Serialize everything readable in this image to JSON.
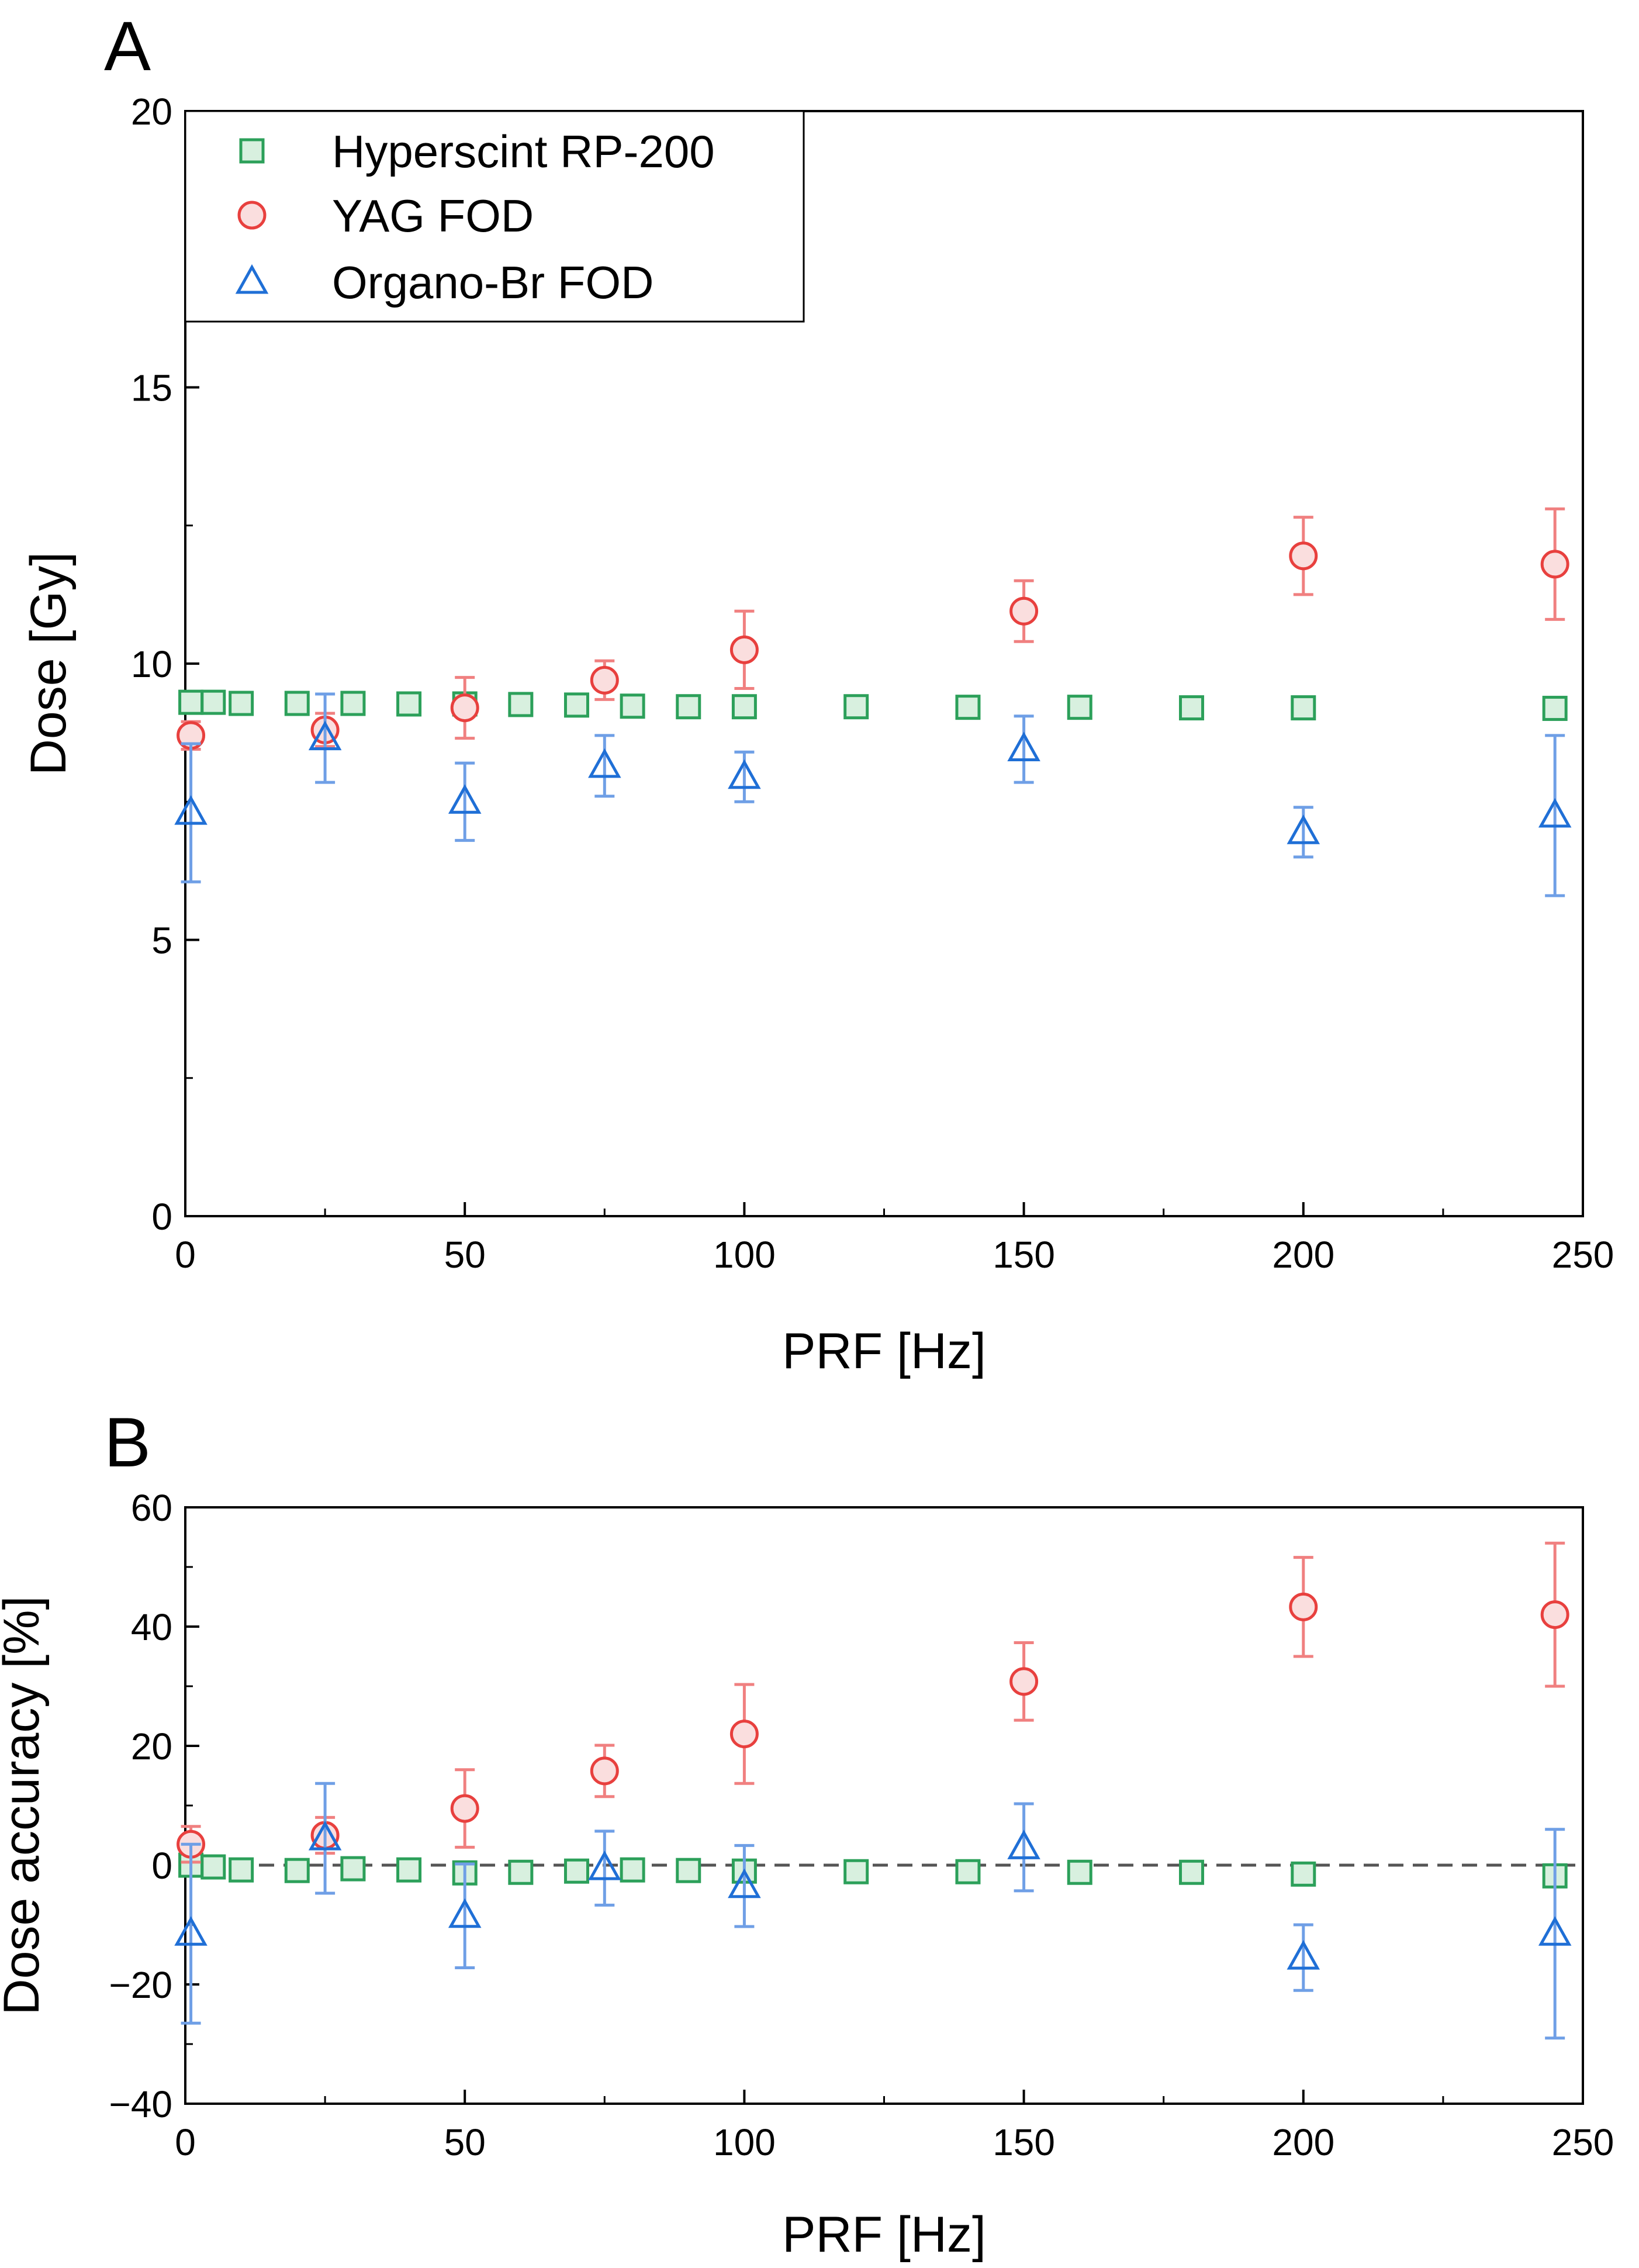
{
  "colors": {
    "hyperscint": "#2ca05a",
    "hyperscint_fill": "#d8f0df",
    "yag": "#e8403e",
    "yag_fill": "#fadede",
    "yag_err": "#f08080",
    "organo": "#1f6fd6",
    "organo_err": "#6f9fe6",
    "reference_line": "#555555",
    "axis": "#000000"
  },
  "legend": {
    "items": [
      {
        "label": "Hyperscint RP-200",
        "marker": "square"
      },
      {
        "label": "YAG FOD",
        "marker": "circle"
      },
      {
        "label": "Organo-Br FOD",
        "marker": "triangle"
      }
    ]
  },
  "chart_data": [
    {
      "panel": "A",
      "type": "scatter",
      "title": "",
      "xlabel": "PRF [Hz]",
      "ylabel": "Dose [Gy]",
      "xlim": [
        0,
        250
      ],
      "ylim": [
        0,
        20
      ],
      "xticks": [
        0,
        50,
        100,
        150,
        200,
        250
      ],
      "yticks": [
        0,
        5,
        10,
        15,
        20
      ],
      "grid": false,
      "legend_position": "top-left",
      "series": [
        {
          "name": "Hyperscint RP-200",
          "marker": "square",
          "x": [
            1,
            5,
            10,
            20,
            30,
            40,
            50,
            60,
            70,
            80,
            90,
            100,
            120,
            140,
            160,
            180,
            200,
            245
          ],
          "y": [
            9.3,
            9.3,
            9.28,
            9.28,
            9.28,
            9.27,
            9.27,
            9.26,
            9.25,
            9.23,
            9.22,
            9.22,
            9.22,
            9.21,
            9.21,
            9.2,
            9.2,
            9.19
          ],
          "err": []
        },
        {
          "name": "YAG FOD",
          "marker": "circle",
          "x": [
            1,
            25,
            50,
            75,
            100,
            150,
            200,
            245
          ],
          "y": [
            8.7,
            8.8,
            9.2,
            9.7,
            10.25,
            10.95,
            11.95,
            11.8
          ],
          "err": [
            0.25,
            0.3,
            0.55,
            0.35,
            0.7,
            0.55,
            0.7,
            1.0
          ]
        },
        {
          "name": "Organo-Br FOD",
          "marker": "triangle",
          "x": [
            1,
            25,
            50,
            75,
            100,
            150,
            200,
            245
          ],
          "y": [
            7.3,
            8.65,
            7.5,
            8.15,
            7.95,
            8.45,
            6.95,
            7.25
          ],
          "err": [
            1.25,
            0.8,
            0.7,
            0.55,
            0.45,
            0.6,
            0.45,
            1.45
          ]
        }
      ]
    },
    {
      "panel": "B",
      "type": "scatter",
      "title": "",
      "xlabel": "PRF [Hz]",
      "ylabel": "Dose accuracy [%]",
      "xlim": [
        0,
        250
      ],
      "ylim": [
        -40,
        60
      ],
      "xticks": [
        0,
        50,
        100,
        150,
        200,
        250
      ],
      "yticks": [
        -40,
        -20,
        0,
        20,
        40,
        60
      ],
      "yticklabels": [
        "−40",
        "−20",
        "0",
        "20",
        "40",
        "60"
      ],
      "grid": false,
      "reference_line_y": 0,
      "series": [
        {
          "name": "Hyperscint RP-200",
          "marker": "square",
          "x": [
            1,
            5,
            10,
            20,
            30,
            40,
            50,
            60,
            70,
            80,
            90,
            100,
            120,
            140,
            160,
            180,
            200,
            245
          ],
          "y": [
            0,
            -0.3,
            -0.8,
            -0.9,
            -0.6,
            -0.8,
            -1.3,
            -1.2,
            -1.0,
            -0.8,
            -0.9,
            -1.0,
            -1.1,
            -1.1,
            -1.2,
            -1.2,
            -1.5,
            -1.8
          ],
          "err": []
        },
        {
          "name": "YAG FOD",
          "marker": "circle",
          "x": [
            1,
            25,
            50,
            75,
            100,
            150,
            200,
            245
          ],
          "y": [
            3.5,
            5,
            9.5,
            15.8,
            22,
            30.8,
            43.3,
            42
          ],
          "err": [
            3,
            3,
            6.5,
            4.3,
            8.3,
            6.5,
            8.3,
            12
          ]
        },
        {
          "name": "Organo-Br FOD",
          "marker": "triangle",
          "x": [
            1,
            25,
            50,
            75,
            100,
            150,
            200,
            245
          ],
          "y": [
            -11.5,
            4.5,
            -8.5,
            -0.5,
            -3.5,
            3,
            -15.5,
            -11.5
          ],
          "err": [
            15,
            9.2,
            8.7,
            6.2,
            6.8,
            7.3,
            5.5,
            17.5
          ]
        }
      ]
    }
  ]
}
